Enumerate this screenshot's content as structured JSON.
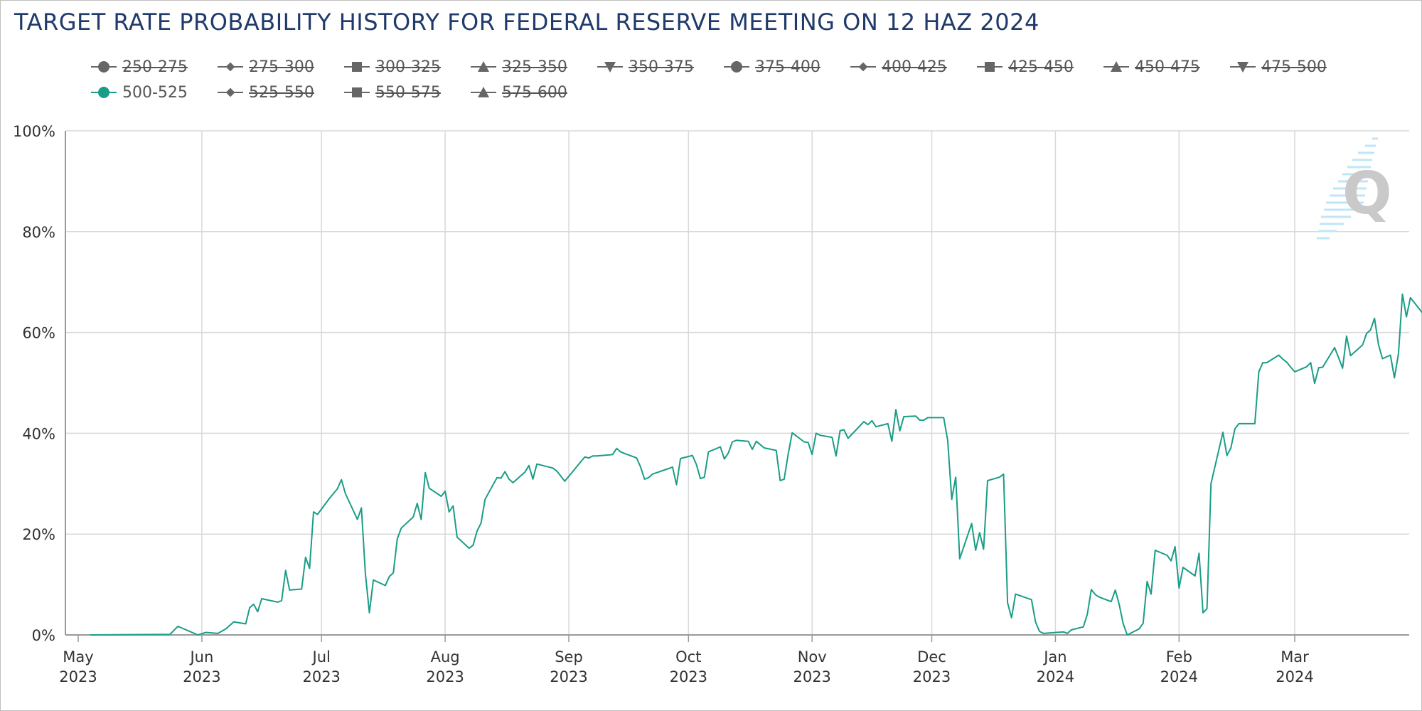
{
  "title": "TARGET RATE PROBABILITY HISTORY FOR FEDERAL RESERVE MEETING ON 12 HAZ 2024",
  "colors": {
    "series": "#1a9d86",
    "grid": "#d9d9d9",
    "title": "#1f3a6b",
    "legend_marker": "#666666"
  },
  "legend": [
    {
      "label": "250-275",
      "shape": "circle",
      "visible": false
    },
    {
      "label": "275-300",
      "shape": "diamond",
      "visible": false
    },
    {
      "label": "300-325",
      "shape": "square",
      "visible": false
    },
    {
      "label": "325-350",
      "shape": "triangle-up",
      "visible": false
    },
    {
      "label": "350-375",
      "shape": "triangle-down",
      "visible": false
    },
    {
      "label": "375-400",
      "shape": "circle",
      "visible": false
    },
    {
      "label": "400-425",
      "shape": "diamond",
      "visible": false
    },
    {
      "label": "425-450",
      "shape": "square",
      "visible": false
    },
    {
      "label": "450-475",
      "shape": "triangle-up",
      "visible": false
    },
    {
      "label": "475-500",
      "shape": "triangle-down",
      "visible": false
    },
    {
      "label": "500-525",
      "shape": "circle",
      "visible": true
    },
    {
      "label": "525-550",
      "shape": "diamond",
      "visible": false
    },
    {
      "label": "550-575",
      "shape": "square",
      "visible": false
    },
    {
      "label": "575-600",
      "shape": "triangle-up",
      "visible": false
    }
  ],
  "chart_data": {
    "type": "line",
    "title": "TARGET RATE PROBABILITY HISTORY FOR FEDERAL RESERVE MEETING ON 12 HAZ 2024",
    "xlabel": "",
    "ylabel": "",
    "ylim": [
      0,
      100
    ],
    "xlim": [
      "2023-05-01",
      "2024-03-27"
    ],
    "y_ticks": [
      "0%",
      "20%",
      "40%",
      "60%",
      "80%",
      "100%"
    ],
    "x_ticks": [
      {
        "date": "2023-05-01",
        "label1": "May",
        "label2": "2023"
      },
      {
        "date": "2023-06-01",
        "label1": "Jun",
        "label2": "2023"
      },
      {
        "date": "2023-07-01",
        "label1": "Jul",
        "label2": "2023"
      },
      {
        "date": "2023-08-01",
        "label1": "Aug",
        "label2": "2023"
      },
      {
        "date": "2023-09-01",
        "label1": "Sep",
        "label2": "2023"
      },
      {
        "date": "2023-10-01",
        "label1": "Oct",
        "label2": "2023"
      },
      {
        "date": "2023-11-01",
        "label1": "Nov",
        "label2": "2023"
      },
      {
        "date": "2023-12-01",
        "label1": "Dec",
        "label2": "2023"
      },
      {
        "date": "2024-01-01",
        "label1": "Jan",
        "label2": "2024"
      },
      {
        "date": "2024-02-01",
        "label1": "Feb",
        "label2": "2024"
      },
      {
        "date": "2024-03-01",
        "label1": "Mar",
        "label2": "2024"
      }
    ],
    "grid": true,
    "legend_position": "top",
    "series": [
      {
        "name": "500-525",
        "points": [
          [
            "2023-05-04",
            0.0
          ],
          [
            "2023-05-24",
            0.1
          ],
          [
            "2023-05-26",
            1.7
          ],
          [
            "2023-05-31",
            0.0
          ],
          [
            "2023-06-02",
            0.5
          ],
          [
            "2023-06-05",
            0.3
          ],
          [
            "2023-06-07",
            1.2
          ],
          [
            "2023-06-09",
            2.6
          ],
          [
            "2023-06-12",
            2.2
          ],
          [
            "2023-06-13",
            5.4
          ],
          [
            "2023-06-14",
            6.1
          ],
          [
            "2023-06-15",
            4.6
          ],
          [
            "2023-06-16",
            7.2
          ],
          [
            "2023-06-20",
            6.5
          ],
          [
            "2023-06-21",
            6.8
          ],
          [
            "2023-06-22",
            12.8
          ],
          [
            "2023-06-23",
            8.9
          ],
          [
            "2023-06-26",
            9.1
          ],
          [
            "2023-06-27",
            15.4
          ],
          [
            "2023-06-28",
            13.2
          ],
          [
            "2023-06-29",
            24.4
          ],
          [
            "2023-06-30",
            23.9
          ],
          [
            "2023-07-03",
            27.1
          ],
          [
            "2023-07-05",
            29.0
          ],
          [
            "2023-07-06",
            30.8
          ],
          [
            "2023-07-07",
            28.0
          ],
          [
            "2023-07-10",
            22.9
          ],
          [
            "2023-07-11",
            25.2
          ],
          [
            "2023-07-12",
            12.2
          ],
          [
            "2023-07-13",
            4.4
          ],
          [
            "2023-07-14",
            10.9
          ],
          [
            "2023-07-17",
            9.8
          ],
          [
            "2023-07-18",
            11.6
          ],
          [
            "2023-07-19",
            12.3
          ],
          [
            "2023-07-20",
            19.1
          ],
          [
            "2023-07-21",
            21.2
          ],
          [
            "2023-07-24",
            23.4
          ],
          [
            "2023-07-25",
            26.1
          ],
          [
            "2023-07-26",
            22.9
          ],
          [
            "2023-07-27",
            32.2
          ],
          [
            "2023-07-28",
            29.1
          ],
          [
            "2023-07-31",
            27.5
          ],
          [
            "2023-08-01",
            28.5
          ],
          [
            "2023-08-02",
            24.4
          ],
          [
            "2023-08-03",
            25.6
          ],
          [
            "2023-08-04",
            19.4
          ],
          [
            "2023-08-07",
            17.2
          ],
          [
            "2023-08-08",
            17.8
          ],
          [
            "2023-08-09",
            20.6
          ],
          [
            "2023-08-10",
            22.2
          ],
          [
            "2023-08-11",
            26.9
          ],
          [
            "2023-08-14",
            31.2
          ],
          [
            "2023-08-15",
            31.1
          ],
          [
            "2023-08-16",
            32.4
          ],
          [
            "2023-08-17",
            30.9
          ],
          [
            "2023-08-18",
            30.2
          ],
          [
            "2023-08-21",
            32.3
          ],
          [
            "2023-08-22",
            33.6
          ],
          [
            "2023-08-23",
            30.9
          ],
          [
            "2023-08-24",
            33.9
          ],
          [
            "2023-08-28",
            33.1
          ],
          [
            "2023-08-29",
            32.5
          ],
          [
            "2023-08-31",
            30.5
          ],
          [
            "2023-09-05",
            35.3
          ],
          [
            "2023-09-06",
            35.1
          ],
          [
            "2023-09-07",
            35.5
          ],
          [
            "2023-09-08",
            35.5
          ],
          [
            "2023-09-11",
            35.7
          ],
          [
            "2023-09-12",
            35.8
          ],
          [
            "2023-09-13",
            37.0
          ],
          [
            "2023-09-14",
            36.3
          ],
          [
            "2023-09-15",
            36.0
          ],
          [
            "2023-09-18",
            35.1
          ],
          [
            "2023-09-19",
            33.3
          ],
          [
            "2023-09-20",
            30.9
          ],
          [
            "2023-09-21",
            31.2
          ],
          [
            "2023-09-22",
            31.9
          ],
          [
            "2023-09-26",
            33.0
          ],
          [
            "2023-09-27",
            33.3
          ],
          [
            "2023-09-28",
            29.8
          ],
          [
            "2023-09-29",
            35.0
          ],
          [
            "2023-10-02",
            35.6
          ],
          [
            "2023-10-03",
            33.8
          ],
          [
            "2023-10-04",
            31.0
          ],
          [
            "2023-10-05",
            31.3
          ],
          [
            "2023-10-06",
            36.3
          ],
          [
            "2023-10-09",
            37.3
          ],
          [
            "2023-10-10",
            34.9
          ],
          [
            "2023-10-11",
            36.1
          ],
          [
            "2023-10-12",
            38.3
          ],
          [
            "2023-10-13",
            38.6
          ],
          [
            "2023-10-16",
            38.4
          ],
          [
            "2023-10-17",
            36.8
          ],
          [
            "2023-10-18",
            38.4
          ],
          [
            "2023-10-20",
            37.1
          ],
          [
            "2023-10-23",
            36.6
          ],
          [
            "2023-10-24",
            30.6
          ],
          [
            "2023-10-25",
            30.9
          ],
          [
            "2023-10-26",
            35.9
          ],
          [
            "2023-10-27",
            40.1
          ],
          [
            "2023-10-30",
            38.3
          ],
          [
            "2023-10-31",
            38.2
          ],
          [
            "2023-11-01",
            35.8
          ],
          [
            "2023-11-02",
            40.0
          ],
          [
            "2023-11-03",
            39.6
          ],
          [
            "2023-11-06",
            39.2
          ],
          [
            "2023-11-07",
            35.5
          ],
          [
            "2023-11-08",
            40.5
          ],
          [
            "2023-11-09",
            40.7
          ],
          [
            "2023-11-10",
            39.0
          ],
          [
            "2023-11-13",
            41.5
          ],
          [
            "2023-11-14",
            42.3
          ],
          [
            "2023-11-15",
            41.7
          ],
          [
            "2023-11-16",
            42.5
          ],
          [
            "2023-11-17",
            41.3
          ],
          [
            "2023-11-20",
            41.9
          ],
          [
            "2023-11-21",
            38.4
          ],
          [
            "2023-11-22",
            44.7
          ],
          [
            "2023-11-23",
            40.5
          ],
          [
            "2023-11-24",
            43.3
          ],
          [
            "2023-11-27",
            43.4
          ],
          [
            "2023-11-28",
            42.6
          ],
          [
            "2023-11-29",
            42.6
          ],
          [
            "2023-11-30",
            43.1
          ],
          [
            "2023-12-04",
            43.1
          ],
          [
            "2023-12-05",
            38.6
          ],
          [
            "2023-12-06",
            26.9
          ],
          [
            "2023-12-07",
            31.3
          ],
          [
            "2023-12-08",
            15.1
          ],
          [
            "2023-12-11",
            22.1
          ],
          [
            "2023-12-12",
            16.8
          ],
          [
            "2023-12-13",
            20.3
          ],
          [
            "2023-12-14",
            17.0
          ],
          [
            "2023-12-15",
            30.6
          ],
          [
            "2023-12-18",
            31.3
          ],
          [
            "2023-12-19",
            31.9
          ],
          [
            "2023-12-20",
            6.4
          ],
          [
            "2023-12-21",
            3.4
          ],
          [
            "2023-12-22",
            8.1
          ],
          [
            "2023-12-26",
            7.0
          ],
          [
            "2023-12-27",
            2.6
          ],
          [
            "2023-12-28",
            0.7
          ],
          [
            "2023-12-29",
            0.3
          ],
          [
            "2024-01-03",
            0.6
          ],
          [
            "2024-01-04",
            0.3
          ],
          [
            "2024-01-05",
            1.0
          ],
          [
            "2024-01-08",
            1.6
          ],
          [
            "2024-01-09",
            4.1
          ],
          [
            "2024-01-10",
            9.0
          ],
          [
            "2024-01-11",
            8.0
          ],
          [
            "2024-01-12",
            7.5
          ],
          [
            "2024-01-15",
            6.6
          ],
          [
            "2024-01-16",
            8.9
          ],
          [
            "2024-01-17",
            6.0
          ],
          [
            "2024-01-18",
            2.2
          ],
          [
            "2024-01-19",
            0.0
          ],
          [
            "2024-01-22",
            1.2
          ],
          [
            "2024-01-23",
            2.3
          ],
          [
            "2024-01-24",
            10.6
          ],
          [
            "2024-01-25",
            8.1
          ],
          [
            "2024-01-26",
            16.8
          ],
          [
            "2024-01-29",
            15.8
          ],
          [
            "2024-01-30",
            14.7
          ],
          [
            "2024-01-31",
            17.5
          ],
          [
            "2024-02-01",
            9.3
          ],
          [
            "2024-02-02",
            13.4
          ],
          [
            "2024-02-05",
            11.7
          ],
          [
            "2024-02-06",
            16.2
          ],
          [
            "2024-02-07",
            4.4
          ],
          [
            "2024-02-08",
            5.2
          ],
          [
            "2024-02-09",
            30.0
          ],
          [
            "2024-02-12",
            40.2
          ],
          [
            "2024-02-13",
            35.6
          ],
          [
            "2024-02-14",
            37.1
          ],
          [
            "2024-02-15",
            40.9
          ],
          [
            "2024-02-16",
            41.9
          ],
          [
            "2024-02-20",
            41.9
          ],
          [
            "2024-02-21",
            52.2
          ],
          [
            "2024-02-22",
            54.0
          ],
          [
            "2024-02-23",
            54.0
          ],
          [
            "2024-02-26",
            55.5
          ],
          [
            "2024-02-27",
            54.7
          ],
          [
            "2024-02-28",
            54.1
          ],
          [
            "2024-02-29",
            53.1
          ],
          [
            "2024-03-01",
            52.2
          ],
          [
            "2024-03-04",
            53.2
          ],
          [
            "2024-03-05",
            54.0
          ],
          [
            "2024-03-06",
            49.9
          ],
          [
            "2024-03-07",
            53.0
          ],
          [
            "2024-03-08",
            53.1
          ],
          [
            "2024-03-11",
            57.0
          ],
          [
            "2024-03-12",
            55.0
          ],
          [
            "2024-03-13",
            52.9
          ],
          [
            "2024-03-14",
            59.3
          ],
          [
            "2024-03-15",
            55.4
          ],
          [
            "2024-03-18",
            57.5
          ],
          [
            "2024-03-19",
            59.8
          ],
          [
            "2024-03-20",
            60.5
          ],
          [
            "2024-03-21",
            62.8
          ],
          [
            "2024-03-22",
            57.6
          ],
          [
            "2024-03-23",
            54.8
          ],
          [
            "2024-03-25",
            55.5
          ],
          [
            "2024-03-26",
            51.0
          ],
          [
            "2024-03-27",
            55.8
          ],
          [
            "2024-03-28",
            67.6
          ],
          [
            "2024-03-29",
            63.1
          ],
          [
            "2024-03-30",
            66.9
          ],
          [
            "2024-04-02",
            63.9
          ],
          [
            "2024-04-03",
            64.1
          ]
        ]
      }
    ]
  }
}
